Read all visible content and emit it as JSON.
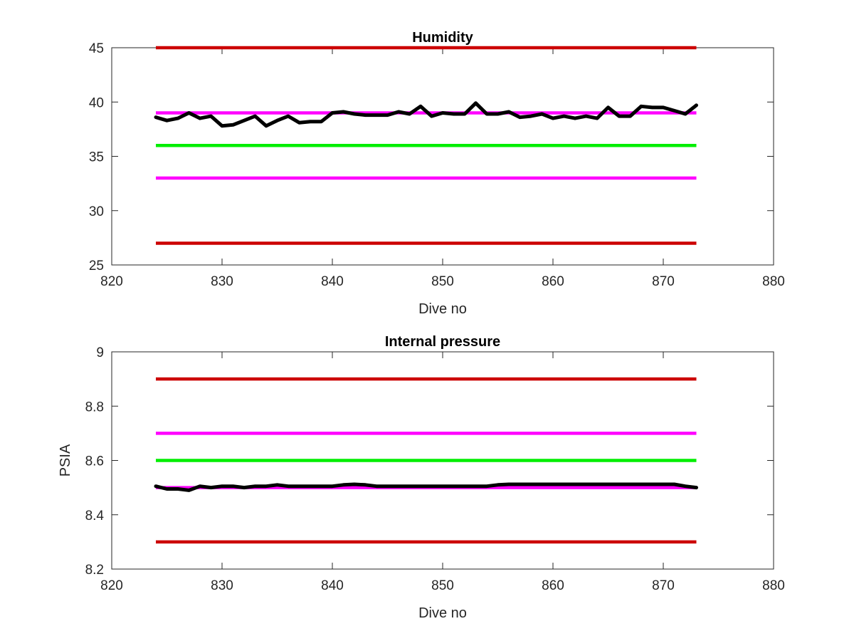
{
  "chart_data": [
    {
      "type": "line",
      "title": "Humidity",
      "xlabel": "Dive no",
      "ylabel": "",
      "xlim": [
        820,
        880
      ],
      "ylim": [
        25,
        45
      ],
      "xticks": [
        820,
        830,
        840,
        850,
        860,
        870,
        880
      ],
      "yticks": [
        25,
        30,
        35,
        40,
        45
      ],
      "grid": false,
      "series": [
        {
          "color": "#cc0000",
          "x": [
            824,
            873
          ],
          "values": [
            45,
            45
          ]
        },
        {
          "color": "#ff00ff",
          "x": [
            824,
            873
          ],
          "values": [
            39,
            39
          ]
        },
        {
          "color": "#00ee00",
          "x": [
            824,
            873
          ],
          "values": [
            36,
            36
          ]
        },
        {
          "color": "#ff00ff",
          "x": [
            824,
            873
          ],
          "values": [
            33,
            33
          ]
        },
        {
          "color": "#cc0000",
          "x": [
            824,
            873
          ],
          "values": [
            27,
            27
          ]
        },
        {
          "color": "#000000",
          "x": [
            824,
            825,
            826,
            827,
            828,
            829,
            830,
            831,
            832,
            833,
            834,
            835,
            836,
            837,
            838,
            839,
            840,
            841,
            842,
            843,
            844,
            845,
            846,
            847,
            848,
            849,
            850,
            851,
            852,
            853,
            854,
            855,
            856,
            857,
            858,
            859,
            860,
            861,
            862,
            863,
            864,
            865,
            866,
            867,
            868,
            869,
            870,
            871,
            872,
            873
          ],
          "values": [
            38.6,
            38.3,
            38.5,
            39.0,
            38.5,
            38.7,
            37.8,
            37.9,
            38.3,
            38.7,
            37.8,
            38.3,
            38.7,
            38.1,
            38.2,
            38.2,
            39.0,
            39.1,
            38.9,
            38.8,
            38.8,
            38.8,
            39.1,
            38.9,
            39.6,
            38.7,
            39.0,
            38.9,
            38.9,
            39.9,
            38.9,
            38.9,
            39.1,
            38.6,
            38.7,
            38.9,
            38.5,
            38.7,
            38.5,
            38.7,
            38.5,
            39.5,
            38.7,
            38.7,
            39.6,
            39.5,
            39.5,
            39.2,
            38.9,
            39.7
          ]
        }
      ]
    },
    {
      "type": "line",
      "title": "Internal pressure",
      "xlabel": "Dive no",
      "ylabel": "PSIA",
      "xlim": [
        820,
        880
      ],
      "ylim": [
        8.2,
        9
      ],
      "xticks": [
        820,
        830,
        840,
        850,
        860,
        870,
        880
      ],
      "yticks": [
        8.2,
        8.4,
        8.6,
        8.8,
        9
      ],
      "grid": false,
      "series": [
        {
          "color": "#cc0000",
          "x": [
            824,
            873
          ],
          "values": [
            8.9,
            8.9
          ]
        },
        {
          "color": "#ff00ff",
          "x": [
            824,
            873
          ],
          "values": [
            8.7,
            8.7
          ]
        },
        {
          "color": "#00ee00",
          "x": [
            824,
            873
          ],
          "values": [
            8.6,
            8.6
          ]
        },
        {
          "color": "#ff00ff",
          "x": [
            824,
            873
          ],
          "values": [
            8.5,
            8.5
          ]
        },
        {
          "color": "#cc0000",
          "x": [
            824,
            873
          ],
          "values": [
            8.3,
            8.3
          ]
        },
        {
          "color": "#000000",
          "x": [
            824,
            825,
            826,
            827,
            828,
            829,
            830,
            831,
            832,
            833,
            834,
            835,
            836,
            837,
            838,
            839,
            840,
            841,
            842,
            843,
            844,
            845,
            846,
            847,
            848,
            849,
            850,
            851,
            852,
            853,
            854,
            855,
            856,
            857,
            858,
            859,
            860,
            861,
            862,
            863,
            864,
            865,
            866,
            867,
            868,
            869,
            870,
            871,
            872,
            873
          ],
          "values": [
            8.505,
            8.495,
            8.495,
            8.49,
            8.505,
            8.5,
            8.505,
            8.505,
            8.5,
            8.505,
            8.505,
            8.51,
            8.505,
            8.505,
            8.505,
            8.505,
            8.505,
            8.51,
            8.512,
            8.51,
            8.505,
            8.505,
            8.505,
            8.505,
            8.505,
            8.505,
            8.505,
            8.505,
            8.505,
            8.505,
            8.505,
            8.51,
            8.512,
            8.512,
            8.512,
            8.512,
            8.512,
            8.512,
            8.512,
            8.512,
            8.512,
            8.512,
            8.512,
            8.512,
            8.512,
            8.512,
            8.512,
            8.512,
            8.505,
            8.5
          ]
        }
      ]
    }
  ]
}
